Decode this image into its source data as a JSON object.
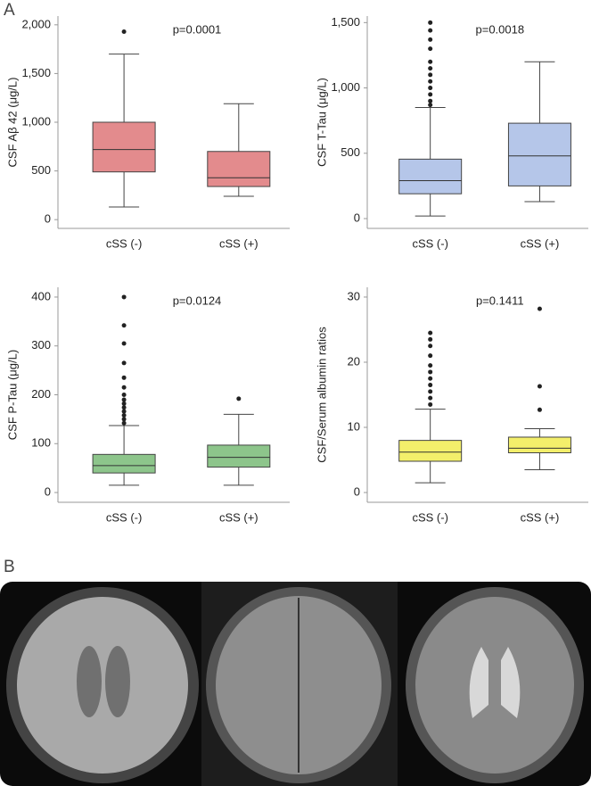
{
  "panel_labels": [
    "A",
    "B"
  ],
  "chart_data": [
    {
      "type": "box",
      "ylabel": "CSF Aβ 42 (μg/L)",
      "annotation": "p=0.0001",
      "categories": [
        "cSS (-)",
        "cSS (+)"
      ],
      "color": "#e38b8d",
      "boxes": [
        {
          "whislo": 130,
          "q1": 490,
          "med": 720,
          "q3": 1000,
          "whishi": 1700,
          "fliers": [
            1930
          ]
        },
        {
          "whislo": 240,
          "q1": 340,
          "med": 430,
          "q3": 700,
          "whishi": 1190,
          "fliers": []
        }
      ],
      "ylim": [
        -90,
        2090
      ],
      "yticks": [
        0,
        500,
        {
          "value": 1000,
          "label": "1,000"
        },
        {
          "value": 1500,
          "label": "1,500"
        },
        {
          "value": 2000,
          "label": "2,000"
        }
      ]
    },
    {
      "type": "box",
      "ylabel": "CSF T-Tau (μg/L)",
      "annotation": "p=0.0018",
      "categories": [
        "cSS (-)",
        "cSS (+)"
      ],
      "color": "#b5c6e9",
      "boxes": [
        {
          "whislo": 20,
          "q1": 190,
          "med": 290,
          "q3": 455,
          "whishi": 850,
          "fliers": [
            870,
            900,
            950,
            1000,
            1050,
            1100,
            1150,
            1200,
            1300,
            1370,
            1440,
            1500
          ]
        },
        {
          "whislo": 130,
          "q1": 250,
          "med": 480,
          "q3": 730,
          "whishi": 1200,
          "fliers": []
        }
      ],
      "ylim": [
        -75,
        1550
      ],
      "yticks": [
        0,
        500,
        {
          "value": 1000,
          "label": "1,000"
        },
        {
          "value": 1500,
          "label": "1,500"
        }
      ]
    },
    {
      "type": "box",
      "ylabel": "CSF P-Tau (μg/L)",
      "annotation": "p=0.0124",
      "categories": [
        "cSS (-)",
        "cSS (+)"
      ],
      "color": "#8dc58b",
      "boxes": [
        {
          "whislo": 15,
          "q1": 40,
          "med": 55,
          "q3": 78,
          "whishi": 137,
          "fliers": [
            142,
            150,
            158,
            166,
            174,
            182,
            190,
            200,
            215,
            235,
            265,
            305,
            342,
            400
          ]
        },
        {
          "whislo": 15,
          "q1": 52,
          "med": 72,
          "q3": 97,
          "whishi": 160,
          "fliers": [
            192
          ]
        }
      ],
      "ylim": [
        -20,
        420
      ],
      "yticks": [
        0,
        100,
        200,
        300,
        400
      ]
    },
    {
      "type": "box",
      "ylabel": "CSF/Serum albumin ratios",
      "annotation": "p=0.1411",
      "categories": [
        "cSS (-)",
        "cSS (+)"
      ],
      "color": "#f3ef6b",
      "boxes": [
        {
          "whislo": 1.5,
          "q1": 4.8,
          "med": 6.2,
          "q3": 8,
          "whishi": 12.8,
          "fliers": [
            13.5,
            14.5,
            15.5,
            16.5,
            17.5,
            18.5,
            19.5,
            21,
            22.5,
            23.5,
            24.5
          ]
        },
        {
          "whislo": 3.5,
          "q1": 6.1,
          "med": 6.8,
          "q3": 8.5,
          "whishi": 9.8,
          "fliers": [
            12.7,
            16.3,
            28.2
          ]
        }
      ],
      "ylim": [
        -1.5,
        31.5
      ],
      "yticks": [
        0,
        10,
        20,
        30
      ]
    }
  ]
}
